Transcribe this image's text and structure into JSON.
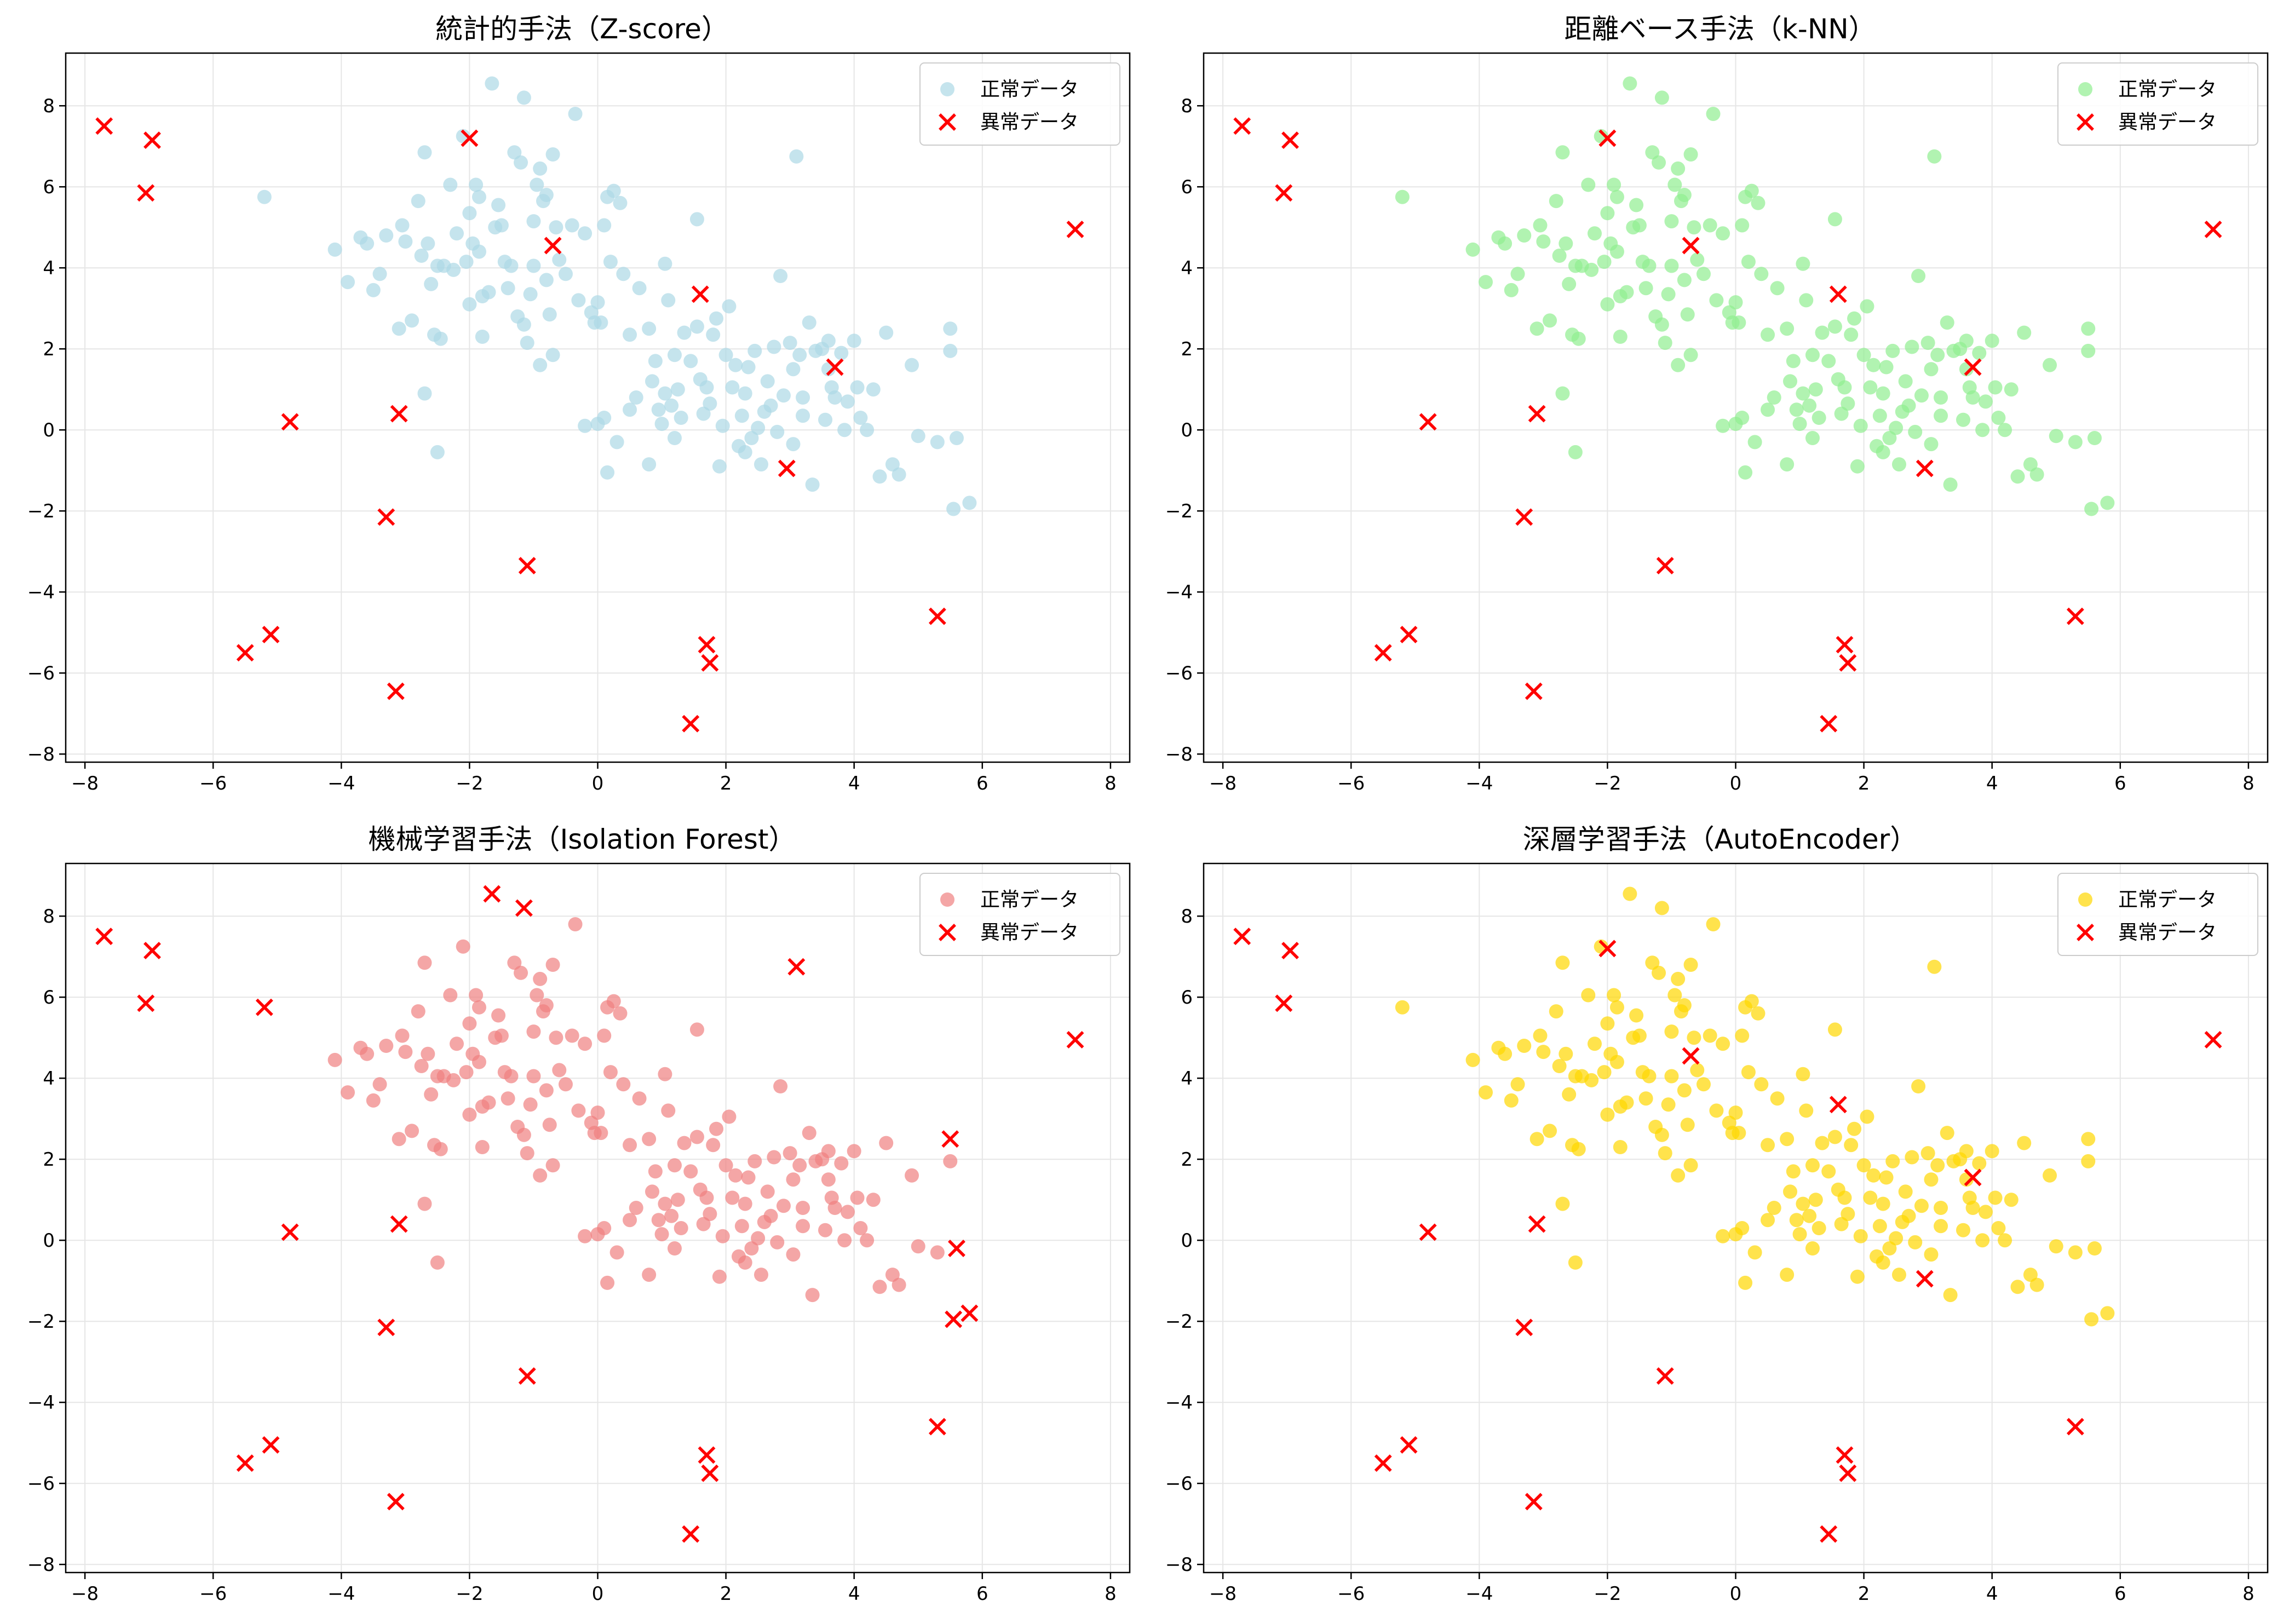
{
  "chart_data": [
    {
      "type": "scatter",
      "title": "統計的手法（Z-score）",
      "xlim": [
        -8.3,
        8.3
      ],
      "ylim": [
        -8.2,
        9.3
      ],
      "xticks": [
        -8,
        -6,
        -4,
        -2,
        0,
        2,
        4,
        6,
        8
      ],
      "yticks": [
        -8,
        -6,
        -4,
        -2,
        0,
        2,
        4,
        6,
        8
      ],
      "grid": true,
      "legend": "top-right",
      "series": [
        {
          "name": "正常データ",
          "marker": "circle",
          "color": "#add8e6",
          "normal_set": true
        },
        {
          "name": "異常データ",
          "marker": "x",
          "color": "#ff0000",
          "points": [
            [
              -7.7,
              7.5
            ],
            [
              -6.95,
              7.15
            ],
            [
              -7.05,
              5.85
            ],
            [
              -4.8,
              0.2
            ],
            [
              -3.1,
              0.4
            ],
            [
              -3.3,
              -2.15
            ],
            [
              -5.5,
              -5.5
            ],
            [
              -5.1,
              -5.05
            ],
            [
              -3.15,
              -6.45
            ],
            [
              -1.1,
              -3.35
            ],
            [
              -2.0,
              7.2
            ],
            [
              -0.7,
              4.55
            ],
            [
              1.6,
              3.35
            ],
            [
              2.95,
              -0.95
            ],
            [
              3.7,
              1.55
            ],
            [
              1.7,
              -5.3
            ],
            [
              1.75,
              -5.75
            ],
            [
              1.45,
              -7.25
            ],
            [
              5.3,
              -4.6
            ],
            [
              7.45,
              4.95
            ]
          ]
        }
      ]
    },
    {
      "type": "scatter",
      "title": "距離ベース手法（k-NN）",
      "xlim": [
        -8.3,
        8.3
      ],
      "ylim": [
        -8.2,
        9.3
      ],
      "xticks": [
        -8,
        -6,
        -4,
        -2,
        0,
        2,
        4,
        6,
        8
      ],
      "yticks": [
        -8,
        -6,
        -4,
        -2,
        0,
        2,
        4,
        6,
        8
      ],
      "grid": true,
      "legend": "top-right",
      "series": [
        {
          "name": "正常データ",
          "marker": "circle",
          "color": "#90ee90",
          "normal_set": true
        },
        {
          "name": "異常データ",
          "marker": "x",
          "color": "#ff0000",
          "points": [
            [
              -7.7,
              7.5
            ],
            [
              -6.95,
              7.15
            ],
            [
              -7.05,
              5.85
            ],
            [
              -4.8,
              0.2
            ],
            [
              -3.1,
              0.4
            ],
            [
              -3.3,
              -2.15
            ],
            [
              -5.5,
              -5.5
            ],
            [
              -5.1,
              -5.05
            ],
            [
              -3.15,
              -6.45
            ],
            [
              -1.1,
              -3.35
            ],
            [
              -2.0,
              7.2
            ],
            [
              -0.7,
              4.55
            ],
            [
              1.6,
              3.35
            ],
            [
              2.95,
              -0.95
            ],
            [
              3.7,
              1.55
            ],
            [
              1.7,
              -5.3
            ],
            [
              1.75,
              -5.75
            ],
            [
              1.45,
              -7.25
            ],
            [
              5.3,
              -4.6
            ],
            [
              7.45,
              4.95
            ]
          ]
        }
      ]
    },
    {
      "type": "scatter",
      "title": "機械学習手法（Isolation Forest）",
      "xlim": [
        -8.3,
        8.3
      ],
      "ylim": [
        -8.2,
        9.3
      ],
      "xticks": [
        -8,
        -6,
        -4,
        -2,
        0,
        2,
        4,
        6,
        8
      ],
      "yticks": [
        -8,
        -6,
        -4,
        -2,
        0,
        2,
        4,
        6,
        8
      ],
      "grid": true,
      "legend": "top-right",
      "series": [
        {
          "name": "正常データ",
          "marker": "circle",
          "color": "#f08080",
          "normal_set": true
        },
        {
          "name": "異常データ",
          "marker": "x",
          "color": "#ff0000",
          "points": [
            [
              -7.7,
              7.5
            ],
            [
              -6.95,
              7.15
            ],
            [
              -7.05,
              5.85
            ],
            [
              -5.2,
              5.75
            ],
            [
              -4.8,
              0.2
            ],
            [
              -3.1,
              0.4
            ],
            [
              -3.3,
              -2.15
            ],
            [
              -5.5,
              -5.5
            ],
            [
              -5.1,
              -5.05
            ],
            [
              -3.15,
              -6.45
            ],
            [
              -1.1,
              -3.35
            ],
            [
              -1.65,
              8.55
            ],
            [
              -1.15,
              8.2
            ],
            [
              3.1,
              6.75
            ],
            [
              5.5,
              2.5
            ],
            [
              5.55,
              -1.95
            ],
            [
              5.6,
              -0.2
            ],
            [
              5.8,
              -1.8
            ],
            [
              1.7,
              -5.3
            ],
            [
              1.75,
              -5.75
            ],
            [
              1.45,
              -7.25
            ],
            [
              5.3,
              -4.6
            ],
            [
              7.45,
              4.95
            ]
          ]
        }
      ]
    },
    {
      "type": "scatter",
      "title": "深層学習手法（AutoEncoder）",
      "xlim": [
        -8.3,
        8.3
      ],
      "ylim": [
        -8.2,
        9.3
      ],
      "xticks": [
        -8,
        -6,
        -4,
        -2,
        0,
        2,
        4,
        6,
        8
      ],
      "yticks": [
        -8,
        -6,
        -4,
        -2,
        0,
        2,
        4,
        6,
        8
      ],
      "grid": true,
      "legend": "top-right",
      "series": [
        {
          "name": "正常データ",
          "marker": "circle",
          "color": "#ffd700",
          "normal_set": true
        },
        {
          "name": "異常データ",
          "marker": "x",
          "color": "#ff0000",
          "points": [
            [
              -7.7,
              7.5
            ],
            [
              -6.95,
              7.15
            ],
            [
              -7.05,
              5.85
            ],
            [
              -4.8,
              0.2
            ],
            [
              -3.1,
              0.4
            ],
            [
              -3.3,
              -2.15
            ],
            [
              -5.5,
              -5.5
            ],
            [
              -5.1,
              -5.05
            ],
            [
              -3.15,
              -6.45
            ],
            [
              -1.1,
              -3.35
            ],
            [
              -2.0,
              7.2
            ],
            [
              -0.7,
              4.55
            ],
            [
              1.6,
              3.35
            ],
            [
              2.95,
              -0.95
            ],
            [
              3.7,
              1.55
            ],
            [
              1.7,
              -5.3
            ],
            [
              1.75,
              -5.75
            ],
            [
              1.45,
              -7.25
            ],
            [
              5.3,
              -4.6
            ],
            [
              7.45,
              4.95
            ]
          ]
        }
      ]
    }
  ],
  "normal_points": [
    [
      -5.2,
      5.75
    ],
    [
      -4.1,
      4.45
    ],
    [
      -3.9,
      3.65
    ],
    [
      -3.7,
      4.75
    ],
    [
      -3.6,
      4.6
    ],
    [
      -3.5,
      3.45
    ],
    [
      -3.4,
      3.85
    ],
    [
      -3.3,
      4.8
    ],
    [
      -3.1,
      2.5
    ],
    [
      -3.05,
      5.05
    ],
    [
      -3.0,
      4.65
    ],
    [
      -2.9,
      2.7
    ],
    [
      -2.8,
      5.65
    ],
    [
      -2.75,
      4.3
    ],
    [
      -2.7,
      6.85
    ],
    [
      -2.65,
      4.6
    ],
    [
      -2.6,
      3.6
    ],
    [
      -2.55,
      2.35
    ],
    [
      -2.5,
      4.05
    ],
    [
      -2.5,
      -0.55
    ],
    [
      -2.45,
      2.25
    ],
    [
      -2.4,
      4.05
    ],
    [
      -2.3,
      6.05
    ],
    [
      -2.25,
      3.95
    ],
    [
      -2.2,
      4.85
    ],
    [
      -2.1,
      7.25
    ],
    [
      -2.05,
      4.15
    ],
    [
      -2.0,
      3.1
    ],
    [
      -2.0,
      5.35
    ],
    [
      -1.95,
      4.6
    ],
    [
      -1.9,
      6.05
    ],
    [
      -1.85,
      5.75
    ],
    [
      -1.85,
      4.4
    ],
    [
      -1.8,
      3.3
    ],
    [
      -1.8,
      2.3
    ],
    [
      -1.7,
      3.4
    ],
    [
      -1.65,
      8.55
    ],
    [
      -1.6,
      5.0
    ],
    [
      -1.55,
      5.55
    ],
    [
      -1.5,
      5.05
    ],
    [
      -1.45,
      4.15
    ],
    [
      -1.4,
      3.5
    ],
    [
      -1.35,
      4.05
    ],
    [
      -1.3,
      6.85
    ],
    [
      -1.25,
      2.8
    ],
    [
      -1.2,
      6.6
    ],
    [
      -1.15,
      8.2
    ],
    [
      -1.15,
      2.6
    ],
    [
      -1.1,
      2.15
    ],
    [
      -1.05,
      3.35
    ],
    [
      -1.0,
      5.15
    ],
    [
      -1.0,
      4.05
    ],
    [
      -0.95,
      6.05
    ],
    [
      -0.9,
      6.45
    ],
    [
      -0.9,
      1.6
    ],
    [
      -0.85,
      5.65
    ],
    [
      -0.8,
      5.8
    ],
    [
      -0.8,
      3.7
    ],
    [
      -0.75,
      2.85
    ],
    [
      -0.7,
      6.8
    ],
    [
      -0.7,
      1.85
    ],
    [
      -0.65,
      5.0
    ],
    [
      -0.6,
      4.2
    ],
    [
      -0.5,
      3.85
    ],
    [
      -0.4,
      5.05
    ],
    [
      -0.35,
      7.8
    ],
    [
      -0.3,
      3.2
    ],
    [
      -0.2,
      4.85
    ],
    [
      -0.1,
      2.9
    ],
    [
      0.0,
      3.15
    ],
    [
      -0.05,
      2.65
    ],
    [
      0.05,
      2.65
    ],
    [
      0.1,
      5.05
    ],
    [
      0.15,
      5.75
    ],
    [
      0.2,
      4.15
    ],
    [
      0.25,
      5.9
    ],
    [
      0.3,
      -0.3
    ],
    [
      0.35,
      5.6
    ],
    [
      0.4,
      3.85
    ],
    [
      0.5,
      2.35
    ],
    [
      0.0,
      0.15
    ],
    [
      0.1,
      0.3
    ],
    [
      0.15,
      -1.05
    ],
    [
      0.5,
      0.5
    ],
    [
      0.65,
      3.5
    ],
    [
      0.8,
      2.5
    ],
    [
      0.8,
      -0.85
    ],
    [
      0.85,
      1.2
    ],
    [
      0.9,
      1.7
    ],
    [
      0.95,
      0.5
    ],
    [
      1.0,
      0.15
    ],
    [
      1.05,
      4.1
    ],
    [
      1.05,
      0.9
    ],
    [
      1.1,
      3.2
    ],
    [
      1.15,
      0.6
    ],
    [
      1.2,
      -0.2
    ],
    [
      1.2,
      1.85
    ],
    [
      1.25,
      1.0
    ],
    [
      1.3,
      0.3
    ],
    [
      1.35,
      2.4
    ],
    [
      1.45,
      1.7
    ],
    [
      1.55,
      2.55
    ],
    [
      1.55,
      5.2
    ],
    [
      1.6,
      1.25
    ],
    [
      1.65,
      0.4
    ],
    [
      1.7,
      1.05
    ],
    [
      1.75,
      0.65
    ],
    [
      1.8,
      2.35
    ],
    [
      1.85,
      2.75
    ],
    [
      1.9,
      -0.9
    ],
    [
      1.95,
      0.1
    ],
    [
      2.0,
      1.85
    ],
    [
      2.05,
      3.05
    ],
    [
      2.1,
      1.05
    ],
    [
      2.15,
      1.6
    ],
    [
      2.2,
      -0.4
    ],
    [
      2.25,
      0.35
    ],
    [
      2.3,
      0.9
    ],
    [
      2.35,
      1.55
    ],
    [
      2.4,
      -0.2
    ],
    [
      2.45,
      1.95
    ],
    [
      2.5,
      0.05
    ],
    [
      2.55,
      -0.85
    ],
    [
      2.6,
      0.45
    ],
    [
      2.65,
      1.2
    ],
    [
      2.7,
      0.6
    ],
    [
      2.75,
      2.05
    ],
    [
      2.8,
      -0.05
    ],
    [
      2.85,
      3.8
    ],
    [
      2.9,
      0.85
    ],
    [
      3.0,
      2.15
    ],
    [
      3.05,
      1.5
    ],
    [
      3.05,
      -0.35
    ],
    [
      3.1,
      6.75
    ],
    [
      3.15,
      1.85
    ],
    [
      3.2,
      0.8
    ],
    [
      3.3,
      2.65
    ],
    [
      3.35,
      -1.35
    ],
    [
      3.4,
      1.95
    ],
    [
      3.5,
      2.0
    ],
    [
      3.55,
      0.25
    ],
    [
      3.6,
      2.2
    ],
    [
      3.65,
      1.05
    ],
    [
      3.7,
      0.8
    ],
    [
      3.8,
      1.9
    ],
    [
      3.85,
      0.0
    ],
    [
      3.9,
      0.7
    ],
    [
      4.0,
      2.2
    ],
    [
      4.05,
      1.05
    ],
    [
      4.1,
      0.3
    ],
    [
      4.2,
      0.0
    ],
    [
      4.3,
      1.0
    ],
    [
      4.4,
      -1.15
    ],
    [
      4.5,
      2.4
    ],
    [
      4.6,
      -0.85
    ],
    [
      4.7,
      -1.1
    ],
    [
      4.9,
      1.6
    ],
    [
      5.0,
      -0.15
    ],
    [
      5.3,
      -0.3
    ],
    [
      5.5,
      2.5
    ],
    [
      5.55,
      -1.95
    ],
    [
      5.6,
      -0.2
    ],
    [
      5.8,
      -1.8
    ],
    [
      5.5,
      1.95
    ],
    [
      3.6,
      1.5
    ],
    [
      3.2,
      0.35
    ],
    [
      2.3,
      -0.55
    ],
    [
      0.6,
      0.8
    ],
    [
      -0.2,
      0.1
    ],
    [
      -2.7,
      0.9
    ]
  ]
}
